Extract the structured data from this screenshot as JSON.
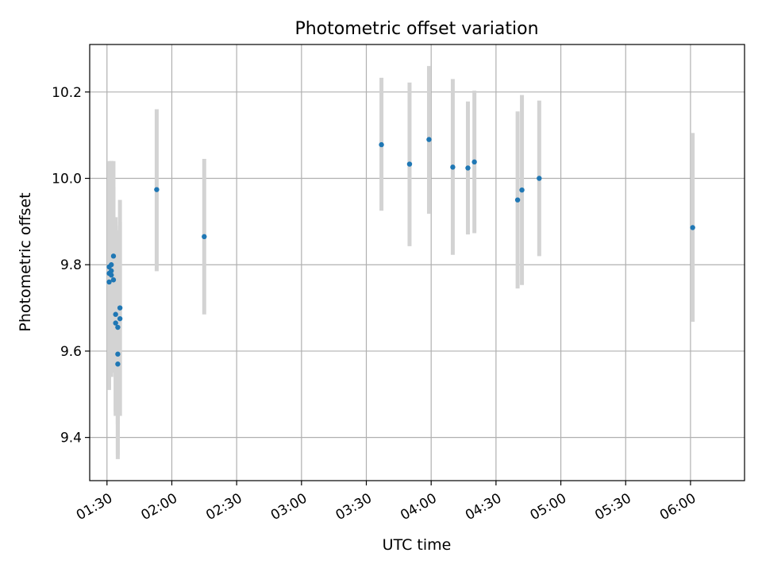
{
  "chart_data": {
    "type": "scatter",
    "title": "Photometric offset variation",
    "xlabel": "UTC time",
    "ylabel": "Photometric offset",
    "x_type": "time",
    "xlim": [
      "01:22",
      "06:25"
    ],
    "ylim": [
      9.3,
      10.31
    ],
    "x_ticks": [
      "01:30",
      "02:00",
      "02:30",
      "03:00",
      "03:30",
      "04:00",
      "04:30",
      "05:00",
      "05:30",
      "06:00"
    ],
    "y_ticks": [
      9.4,
      9.6,
      9.8,
      10.0,
      10.2
    ],
    "grid": true,
    "error_bars": true,
    "colors": {
      "point": "#1f77b4",
      "error_bar": "#d3d3d3",
      "grid": "#b0b0b0"
    },
    "points": [
      {
        "x": "01:31",
        "y": 9.76,
        "low": 9.51,
        "high": 10.0
      },
      {
        "x": "01:31",
        "y": 9.795,
        "low": 9.55,
        "high": 10.04
      },
      {
        "x": "01:31",
        "y": 9.78,
        "low": 9.54,
        "high": 10.03
      },
      {
        "x": "01:32",
        "y": 9.786,
        "low": 9.55,
        "high": 10.04
      },
      {
        "x": "01:32",
        "y": 9.776,
        "low": 9.54,
        "high": 10.02
      },
      {
        "x": "01:32",
        "y": 9.8,
        "low": 9.56,
        "high": 10.04
      },
      {
        "x": "01:33",
        "y": 9.82,
        "low": 9.6,
        "high": 10.04
      },
      {
        "x": "01:33",
        "y": 9.765,
        "low": 9.55,
        "high": 9.98
      },
      {
        "x": "01:34",
        "y": 9.685,
        "low": 9.46,
        "high": 9.91
      },
      {
        "x": "01:34",
        "y": 9.665,
        "low": 9.45,
        "high": 9.89
      },
      {
        "x": "01:35",
        "y": 9.57,
        "low": 9.36,
        "high": 9.78
      },
      {
        "x": "01:35",
        "y": 9.593,
        "low": 9.35,
        "high": 9.84
      },
      {
        "x": "01:35",
        "y": 9.655,
        "low": 9.43,
        "high": 9.88
      },
      {
        "x": "01:36",
        "y": 9.675,
        "low": 9.45,
        "high": 9.9
      },
      {
        "x": "01:36",
        "y": 9.7,
        "low": 9.45,
        "high": 9.95
      },
      {
        "x": "01:53",
        "y": 9.974,
        "low": 9.785,
        "high": 10.16
      },
      {
        "x": "02:15",
        "y": 9.865,
        "low": 9.685,
        "high": 10.045
      },
      {
        "x": "03:37",
        "y": 10.078,
        "low": 9.925,
        "high": 10.233
      },
      {
        "x": "03:50",
        "y": 10.033,
        "low": 9.843,
        "high": 10.222
      },
      {
        "x": "03:59",
        "y": 10.09,
        "low": 9.918,
        "high": 10.26
      },
      {
        "x": "04:10",
        "y": 10.026,
        "low": 9.823,
        "high": 10.23
      },
      {
        "x": "04:17",
        "y": 10.024,
        "low": 9.87,
        "high": 10.178
      },
      {
        "x": "04:20",
        "y": 10.038,
        "low": 9.873,
        "high": 10.203
      },
      {
        "x": "04:40",
        "y": 9.95,
        "low": 9.745,
        "high": 10.155
      },
      {
        "x": "04:42",
        "y": 9.973,
        "low": 9.753,
        "high": 10.193
      },
      {
        "x": "04:50",
        "y": 10.0,
        "low": 9.82,
        "high": 10.18
      },
      {
        "x": "06:01",
        "y": 9.886,
        "low": 9.668,
        "high": 10.105
      }
    ]
  }
}
